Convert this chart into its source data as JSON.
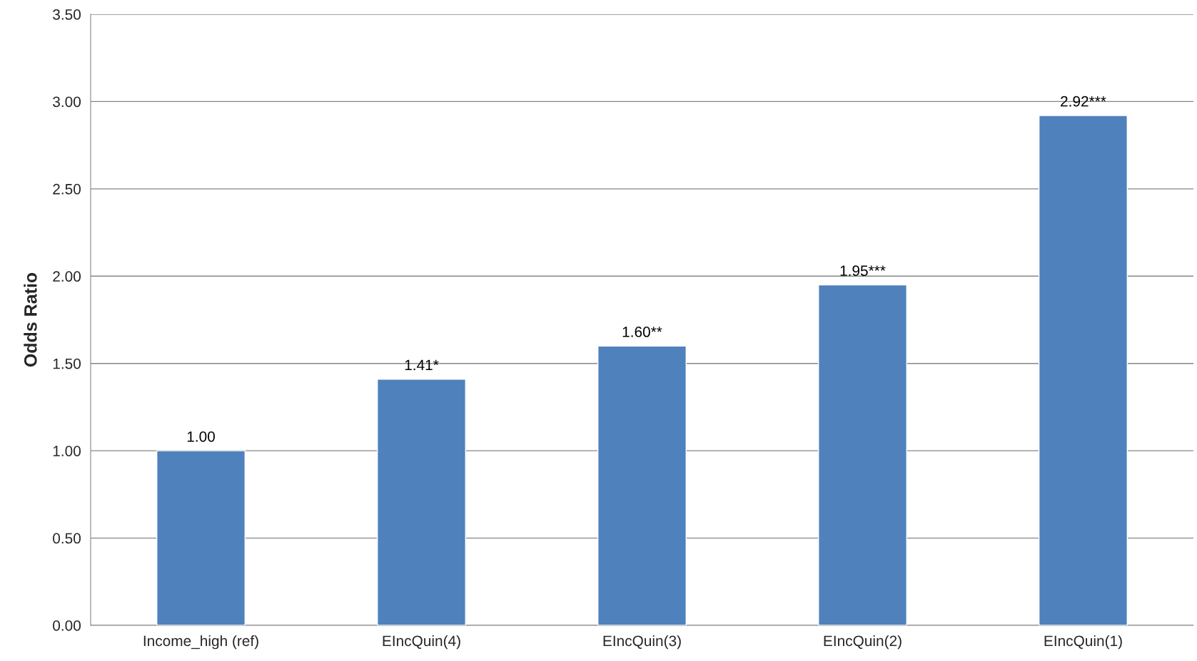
{
  "chart_data": {
    "type": "bar",
    "ylabel": "Odds Ratio",
    "categories": [
      "Income_high (ref)",
      "EIncQuin(4)",
      "EIncQuin(3)",
      "EIncQuin(2)",
      "EIncQuin(1)"
    ],
    "values": [
      1.0,
      1.41,
      1.6,
      1.95,
      2.92
    ],
    "value_labels": [
      "1.00",
      "1.41*",
      "1.60**",
      "1.95***",
      "2.92***"
    ],
    "color": "#4f81bd",
    "ylim": [
      0,
      3.5
    ],
    "yticks": [
      {
        "value": 0,
        "label": "0.00"
      },
      {
        "value": 0.5,
        "label": "0.50"
      },
      {
        "value": 1,
        "label": "1.00"
      },
      {
        "value": 1.5,
        "label": "1.50"
      },
      {
        "value": 2,
        "label": "2.00"
      },
      {
        "value": 2.5,
        "label": "2.50"
      },
      {
        "value": 3,
        "label": "3.00"
      },
      {
        "value": 3.5,
        "label": "3.50"
      }
    ],
    "grid": "y",
    "legend": false
  }
}
